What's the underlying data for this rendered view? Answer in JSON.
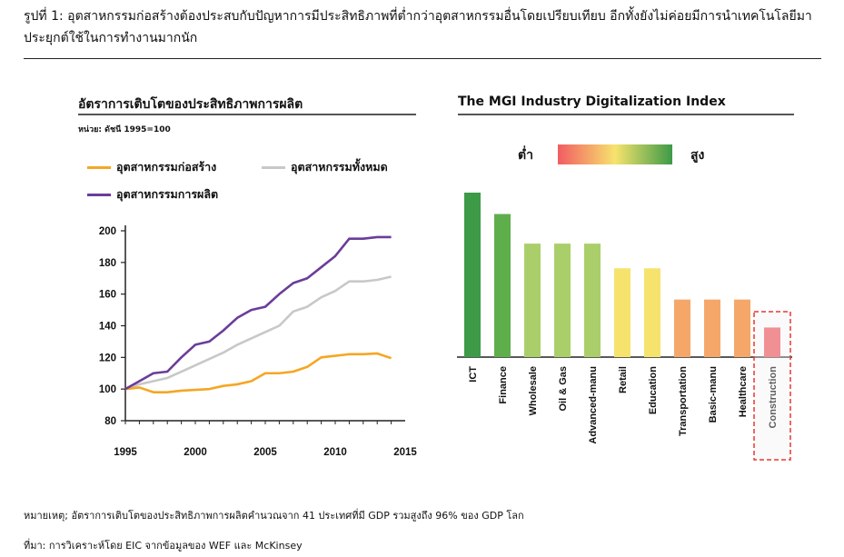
{
  "caption": "รูปที่ 1: อุตสาหกรรมก่อสร้างต้องประสบกับปัญหาการมีประสิทธิภาพที่ต่ำกว่าอุตสาหกรรมอื่นโดยเปรียบเทียบ อีกทั้งยังไม่ค่อยมีการนำเทคโนโลยีมาประยุกต์ใช้ในการทำงานมากนัก",
  "footnote_note": "หมายเหตุ; อัตราการเติบโตของประสิทธิภาพการผลิตคำนวณจาก 41 ประเทศที่มี GDP รวมสูงถึง 96%  ของ GDP โลก",
  "footnote_source": "ที่มา: การวิเคราะห์โดย EIC จากข้อมูลของ  WEF  และ  McKinsey",
  "colors": {
    "construction": "#f5a623",
    "all_industries": "#c8c8c8",
    "manufacturing": "#6a3d9a",
    "highlight_box": "#e53935"
  },
  "chart_data": [
    {
      "type": "line",
      "title": "อัตราการเติบโตของประสิทธิภาพการผลิต",
      "unit_label": "หน่วย: ดัชนี 1995=100",
      "x": [
        1995,
        1996,
        1997,
        1998,
        1999,
        2000,
        2001,
        2002,
        2003,
        2004,
        2005,
        2006,
        2007,
        2008,
        2009,
        2010,
        2011,
        2012,
        2013,
        2014
      ],
      "xticks": [
        "1995",
        "2000",
        "2005",
        "2010",
        "2015"
      ],
      "yticks": [
        "80",
        "100",
        "120",
        "140",
        "160",
        "180",
        "200"
      ],
      "xlim": [
        1995,
        2015
      ],
      "ylim": [
        80,
        200
      ],
      "legend_position": "top",
      "series": [
        {
          "name": "อุตสาหกรรมก่อสร้าง",
          "color": "#f5a623",
          "values": [
            100,
            101,
            98,
            98,
            99,
            99.5,
            100,
            102,
            103,
            105,
            110,
            110,
            111,
            114,
            120,
            121,
            122,
            122,
            122.5,
            119.5
          ]
        },
        {
          "name": "อุตสาหกรรมทั้งหมด",
          "color": "#c8c8c8",
          "values": [
            100,
            103,
            105,
            107,
            111,
            115,
            119,
            123,
            128,
            132,
            136,
            140,
            149,
            152,
            158,
            162,
            168,
            168,
            169,
            171
          ]
        },
        {
          "name": "อุตสาหกรรมการผลิต",
          "color": "#6a3d9a",
          "values": [
            100,
            105,
            110,
            111,
            120,
            128,
            130,
            137,
            145,
            150,
            152,
            160,
            167,
            170,
            177,
            184,
            195,
            195,
            196,
            196
          ]
        }
      ]
    },
    {
      "type": "bar",
      "title": "The MGI Industry Digitalization Index",
      "scale_low_label": "ต่ำ",
      "scale_high_label": "สูง",
      "categories": [
        "ICT",
        "Finance",
        "Wholesale",
        "Oil & Gas",
        "Advanced-manu",
        "Retail",
        "Education",
        "Transportation",
        "Basic-manu",
        "Healthcare",
        "Construction"
      ],
      "values": [
        10,
        8.7,
        6.9,
        6.9,
        6.9,
        5.4,
        5.4,
        3.5,
        3.5,
        3.5,
        1.8
      ],
      "bar_colors": [
        "#3d9a47",
        "#5fae4c",
        "#aacf6a",
        "#aacf6a",
        "#aacf6a",
        "#f6e36d",
        "#f6e36d",
        "#f5a76a",
        "#f5a76a",
        "#f5a76a",
        "#f25c63"
      ],
      "highlighted": "Construction"
    }
  ]
}
